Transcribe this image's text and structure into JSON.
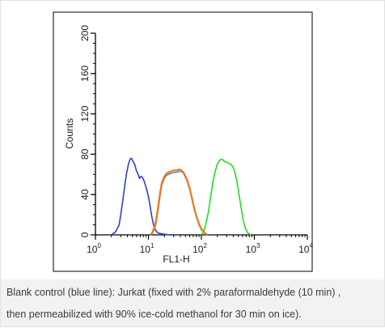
{
  "chart_data": {
    "type": "line",
    "title": "",
    "xlabel": "FL1-H",
    "ylabel": "Counts",
    "xscale": "log",
    "xlim": [
      1,
      10000
    ],
    "ylim": [
      0,
      200
    ],
    "x_ticks": [
      {
        "base": "10",
        "exp": "0"
      },
      {
        "base": "10",
        "exp": "1"
      },
      {
        "base": "10",
        "exp": "2"
      },
      {
        "base": "10",
        "exp": "3"
      },
      {
        "base": "10",
        "exp": "4"
      }
    ],
    "y_ticks": [
      "0",
      "40",
      "80",
      "120",
      "160",
      "200"
    ],
    "grid": false,
    "legend": "none",
    "series": [
      {
        "color": "#2f3fd0",
        "x": [
          2.0,
          2.4,
          2.8,
          3.0,
          3.3,
          3.6,
          3.9,
          4.2,
          4.5,
          4.8,
          5.1,
          5.5,
          5.9,
          6.4,
          6.8,
          7.2,
          7.7,
          8.2,
          8.7,
          9.3,
          10.0,
          10.8,
          11.6,
          12.5,
          13.5,
          15.0,
          18.0,
          25.0
        ],
        "y": [
          0,
          3,
          10,
          20,
          35,
          50,
          62,
          70,
          75,
          76,
          73,
          70,
          64,
          60,
          56,
          58,
          57,
          54,
          50,
          45,
          38,
          28,
          18,
          10,
          5,
          2,
          1,
          0
        ]
      },
      {
        "color": "#4a8fd8",
        "x": [
          11,
          12,
          13,
          14,
          15,
          16,
          17,
          18,
          20,
          22,
          24,
          27,
          30,
          34,
          38,
          42,
          46,
          50,
          55,
          60,
          66,
          72,
          80,
          90,
          100,
          115,
          130
        ],
        "y": [
          0,
          2,
          6,
          12,
          22,
          33,
          42,
          50,
          56,
          59,
          60,
          61,
          62,
          62,
          63,
          63,
          61,
          57,
          52,
          45,
          36,
          27,
          18,
          10,
          5,
          2,
          0
        ]
      },
      {
        "color": "#f07a1a",
        "x": [
          11,
          12,
          13,
          14,
          15,
          16,
          17,
          18,
          20,
          22,
          24,
          27,
          30,
          34,
          38,
          42,
          46,
          50,
          55,
          60,
          66,
          72,
          80,
          90,
          100,
          115,
          130
        ],
        "y": [
          0,
          3,
          8,
          15,
          25,
          36,
          45,
          52,
          58,
          61,
          62,
          63,
          64,
          64,
          65,
          64,
          62,
          58,
          53,
          46,
          37,
          28,
          19,
          11,
          6,
          2,
          0
        ]
      },
      {
        "color": "#22dd22",
        "x": [
          100,
          110,
          120,
          135,
          150,
          165,
          180,
          200,
          220,
          245,
          270,
          300,
          330,
          360,
          400,
          440,
          480,
          520,
          570,
          620,
          680,
          750,
          850
        ],
        "y": [
          0,
          3,
          10,
          22,
          38,
          52,
          62,
          70,
          74,
          75,
          73,
          72,
          71,
          70,
          67,
          60,
          50,
          38,
          25,
          14,
          6,
          2,
          0
        ]
      }
    ]
  },
  "caption": {
    "line1": "Blank control (blue line): Jurkat (fixed with 2% paraformaldehyde (10 min) ,",
    "line2": "then permeabilized with 90% ice-cold methanol for 30 min on ice)."
  }
}
